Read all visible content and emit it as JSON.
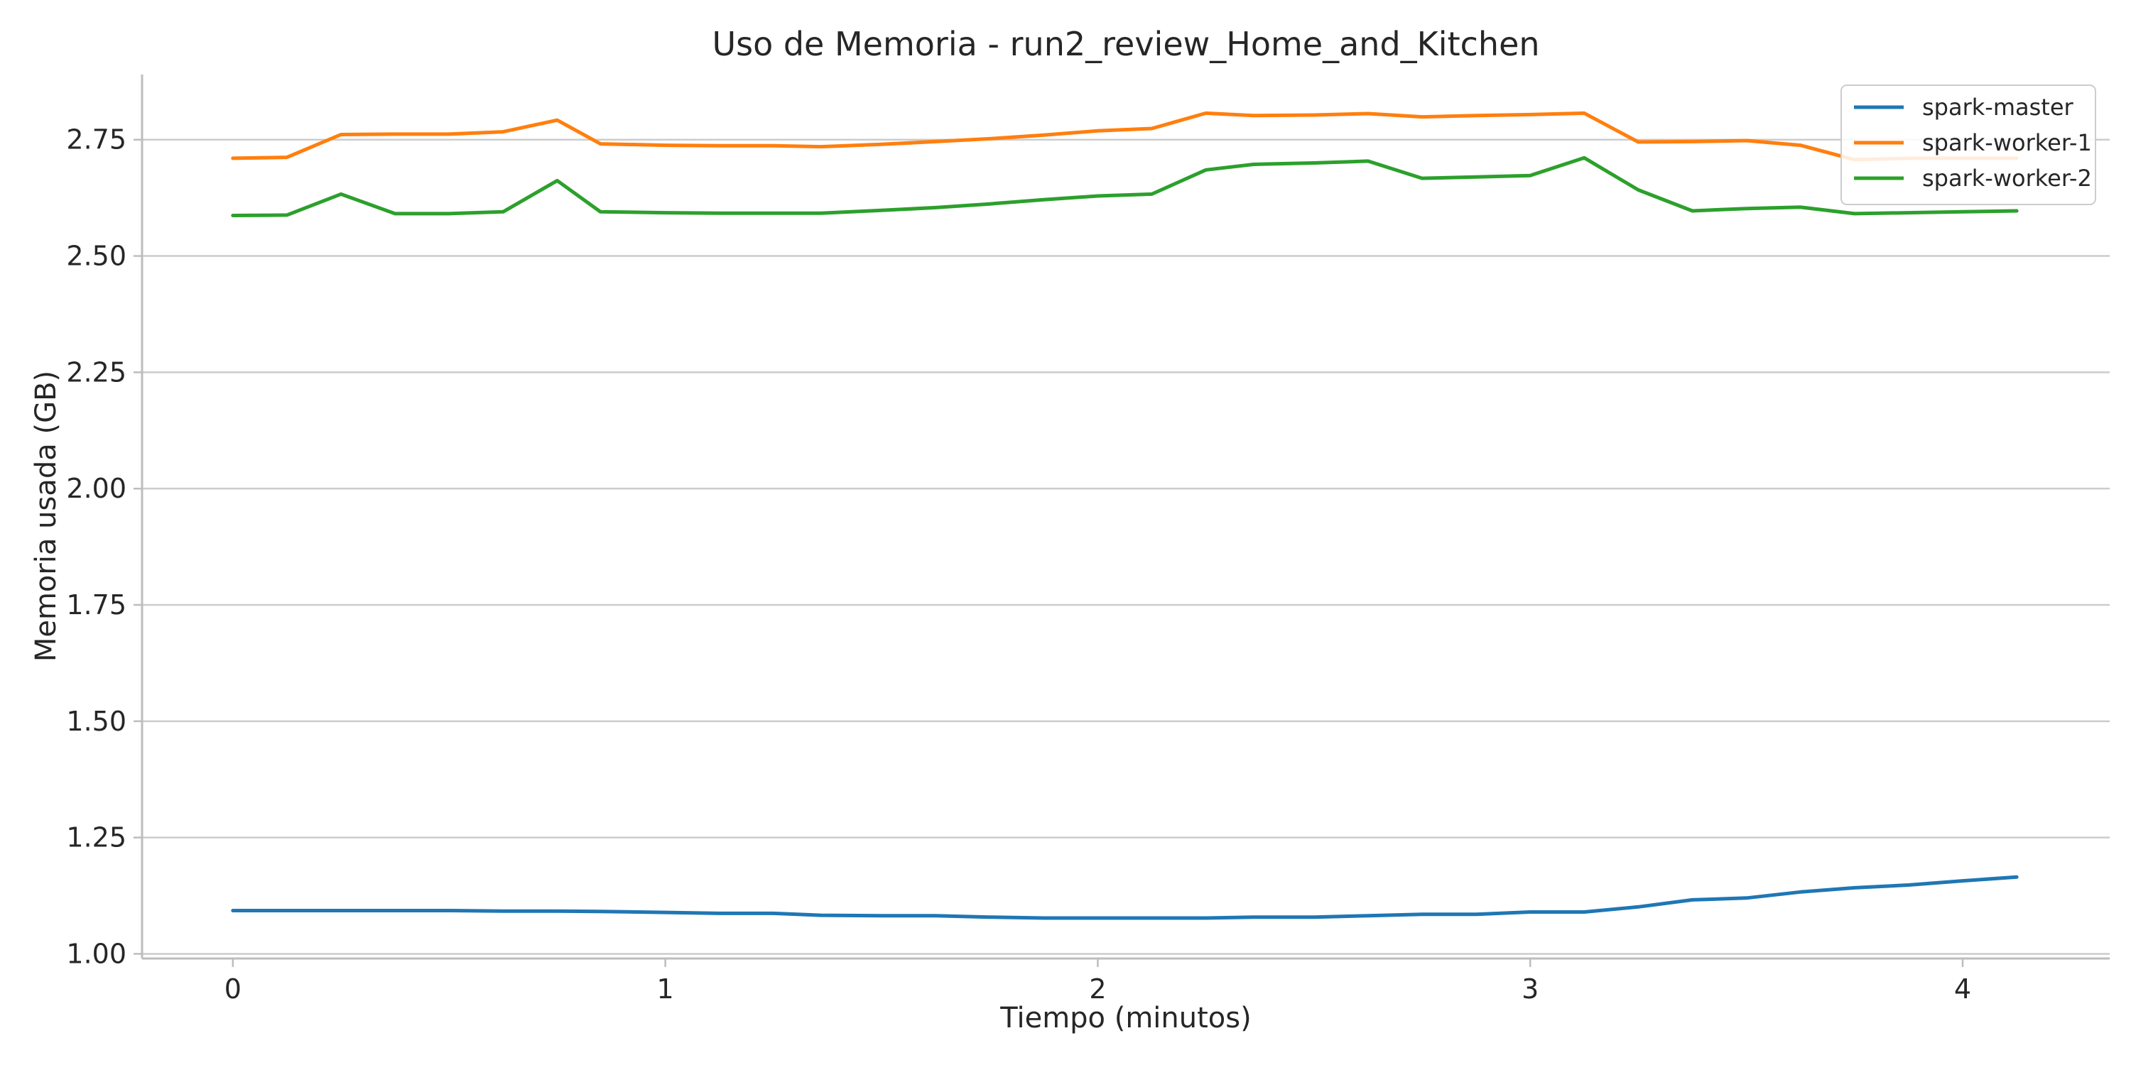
{
  "chart_data": {
    "type": "line",
    "title": "Uso de Memoria - run2_review_Home_and_Kitchen",
    "xlabel": "Tiempo (minutos)",
    "ylabel": "Memoria usada (GB)",
    "xlim": [
      -0.21,
      4.34
    ],
    "ylim": [
      0.99,
      2.89
    ],
    "xticks": [
      0,
      1,
      2,
      3,
      4
    ],
    "yticks": [
      1.0,
      1.25,
      1.5,
      1.75,
      2.0,
      2.25,
      2.5,
      2.75
    ],
    "xtick_labels": [
      "0",
      "1",
      "2",
      "3",
      "4"
    ],
    "ytick_labels": [
      "1.00",
      "1.25",
      "1.50",
      "1.75",
      "2.00",
      "2.25",
      "2.50",
      "2.75"
    ],
    "grid": "horizontal",
    "legend_position": "top-right",
    "x": [
      0.0,
      0.125,
      0.25,
      0.375,
      0.5,
      0.625,
      0.75,
      0.85,
      1.0,
      1.125,
      1.25,
      1.36,
      1.5,
      1.625,
      1.75,
      1.875,
      2.0,
      2.125,
      2.25,
      2.36,
      2.5,
      2.625,
      2.75,
      2.875,
      3.0,
      3.125,
      3.25,
      3.375,
      3.5,
      3.625,
      3.75,
      3.875,
      4.0,
      4.125
    ],
    "series": [
      {
        "name": "spark-master",
        "color": "#1f77b4",
        "values": [
          1.093,
          1.093,
          1.093,
          1.093,
          1.093,
          1.092,
          1.092,
          1.091,
          1.089,
          1.087,
          1.087,
          1.083,
          1.082,
          1.082,
          1.079,
          1.077,
          1.077,
          1.077,
          1.077,
          1.079,
          1.079,
          1.082,
          1.085,
          1.085,
          1.09,
          1.09,
          1.101,
          1.116,
          1.12,
          1.133,
          1.142,
          1.148,
          1.157,
          1.165
        ]
      },
      {
        "name": "spark-worker-1",
        "color": "#ff7f0e",
        "values": [
          2.71,
          2.712,
          2.761,
          2.762,
          2.762,
          2.767,
          2.792,
          2.741,
          2.738,
          2.737,
          2.737,
          2.735,
          2.74,
          2.746,
          2.752,
          2.76,
          2.769,
          2.774,
          2.807,
          2.802,
          2.803,
          2.806,
          2.799,
          2.802,
          2.804,
          2.807,
          2.745,
          2.746,
          2.748,
          2.738,
          2.707,
          2.71,
          2.71,
          2.71
        ]
      },
      {
        "name": "spark-worker-2",
        "color": "#2ca02c",
        "values": [
          2.587,
          2.588,
          2.633,
          2.591,
          2.591,
          2.595,
          2.662,
          2.595,
          2.593,
          2.592,
          2.592,
          2.592,
          2.598,
          2.604,
          2.612,
          2.621,
          2.629,
          2.633,
          2.685,
          2.697,
          2.7,
          2.704,
          2.667,
          2.67,
          2.673,
          2.711,
          2.642,
          2.597,
          2.602,
          2.605,
          2.591,
          2.593,
          2.595,
          2.597
        ]
      }
    ]
  }
}
